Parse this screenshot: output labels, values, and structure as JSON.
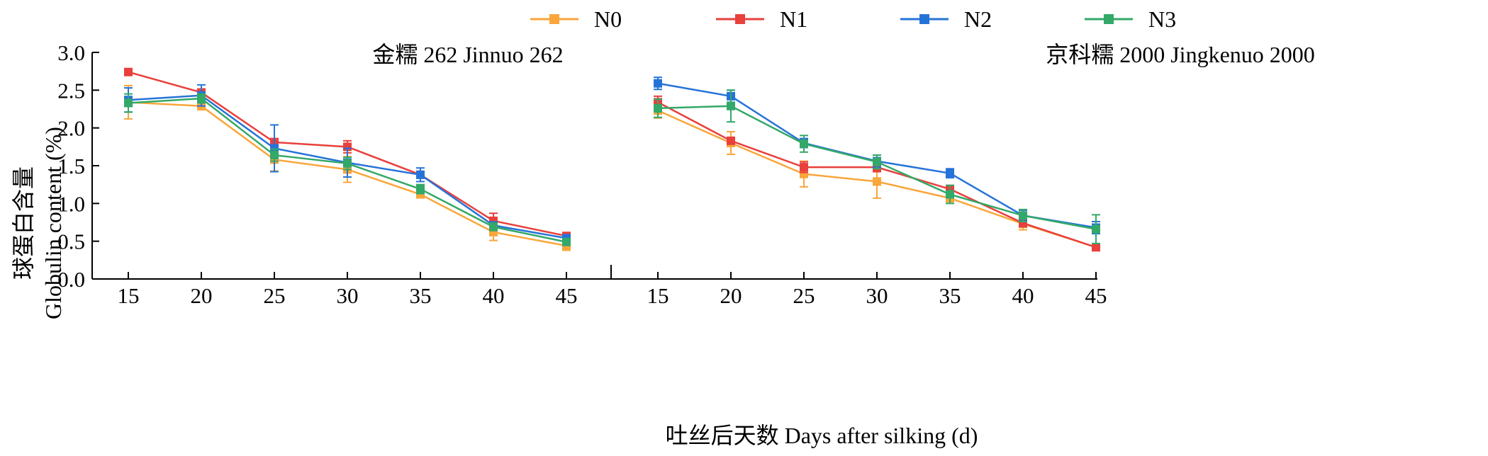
{
  "legend": [
    {
      "name": "N0",
      "color": "#F9A63A"
    },
    {
      "name": "N1",
      "color": "#E8403C"
    },
    {
      "name": "N2",
      "color": "#2673D8"
    },
    {
      "name": "N3",
      "color": "#33A869"
    }
  ],
  "y_axis": {
    "label_cn": "球蛋白含量",
    "label_en": "Globulin content (%)",
    "ylim": [
      0,
      3.0
    ],
    "ticks": [
      0.0,
      0.5,
      1.0,
      1.5,
      2.0,
      2.5,
      3.0
    ],
    "tick_labels": [
      "0.0",
      "0.5",
      "1.0",
      "1.5",
      "2.0",
      "2.5",
      "3.0"
    ]
  },
  "x_axis": {
    "label": "吐丝后天数 Days after silking (d)"
  },
  "chart_data": [
    {
      "type": "line",
      "title": "金糯 262 Jinnuo 262",
      "x": [
        15,
        20,
        25,
        30,
        35,
        40,
        45
      ],
      "x_tick_labels": [
        "15",
        "20",
        "25",
        "30",
        "35",
        "40",
        "45"
      ],
      "ylim": [
        0,
        3.0
      ],
      "grid": false,
      "legend_position": "top",
      "series": [
        {
          "name": "N0",
          "color": "#F9A63A",
          "values": [
            2.34,
            2.29,
            1.58,
            1.45,
            1.12,
            0.62,
            0.44
          ],
          "errors": [
            0.22,
            0.05,
            0.15,
            0.17,
            0.04,
            0.11,
            0.06
          ]
        },
        {
          "name": "N1",
          "color": "#E8403C",
          "values": [
            2.74,
            2.47,
            1.81,
            1.75,
            1.38,
            0.77,
            0.57
          ],
          "errors": [
            0.03,
            0.04,
            0.05,
            0.08,
            0.03,
            0.1,
            0.03
          ]
        },
        {
          "name": "N2",
          "color": "#2673D8",
          "values": [
            2.37,
            2.43,
            1.73,
            1.54,
            1.38,
            0.71,
            0.54
          ],
          "errors": [
            0.16,
            0.14,
            0.31,
            0.19,
            0.09,
            0.03,
            0.03
          ]
        },
        {
          "name": "N3",
          "color": "#33A869",
          "values": [
            2.33,
            2.39,
            1.64,
            1.53,
            1.19,
            0.69,
            0.49
          ],
          "errors": [
            0.12,
            0.06,
            0.08,
            0.08,
            0.06,
            0.05,
            0.03
          ]
        }
      ]
    },
    {
      "type": "line",
      "title": "京科糯 2000 Jingkenuo 2000",
      "x": [
        15,
        20,
        25,
        30,
        35,
        40,
        45
      ],
      "x_tick_labels": [
        "15",
        "20",
        "25",
        "30",
        "35",
        "40",
        "45"
      ],
      "ylim": [
        0,
        3.0
      ],
      "grid": false,
      "legend_position": "top",
      "series": [
        {
          "name": "N0",
          "color": "#F9A63A",
          "values": [
            2.23,
            1.8,
            1.39,
            1.29,
            1.07,
            0.73,
            0.42
          ],
          "errors": [
            0.1,
            0.15,
            0.17,
            0.22,
            0.05,
            0.08,
            0.03
          ]
        },
        {
          "name": "N1",
          "color": "#E8403C",
          "values": [
            2.34,
            1.83,
            1.48,
            1.48,
            1.19,
            0.74,
            0.42
          ],
          "errors": [
            0.08,
            0.04,
            0.07,
            0.06,
            0.05,
            0.05,
            0.02
          ]
        },
        {
          "name": "N2",
          "color": "#2673D8",
          "values": [
            2.59,
            2.42,
            1.8,
            1.56,
            1.4,
            0.84,
            0.68
          ],
          "errors": [
            0.08,
            0.08,
            0.06,
            0.08,
            0.06,
            0.07,
            0.08
          ]
        },
        {
          "name": "N3",
          "color": "#33A869",
          "values": [
            2.26,
            2.29,
            1.79,
            1.55,
            1.12,
            0.84,
            0.66
          ],
          "errors": [
            0.12,
            0.21,
            0.11,
            0.09,
            0.12,
            0.08,
            0.19
          ]
        }
      ]
    }
  ]
}
